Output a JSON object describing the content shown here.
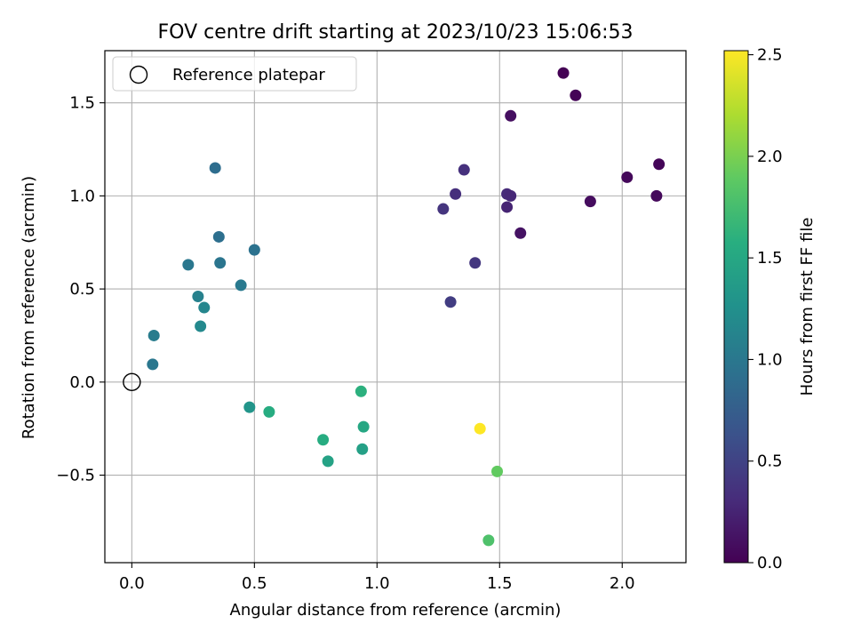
{
  "chart_data": {
    "type": "scatter",
    "title": "FOV centre drift starting at 2023/10/23 15:06:53",
    "xlabel": "Angular distance from reference (arcmin)",
    "ylabel": "Rotation from reference (arcmin)",
    "xlim": [
      -0.11,
      2.26
    ],
    "ylim": [
      -0.97,
      1.78
    ],
    "xticks": [
      0.0,
      0.5,
      1.0,
      1.5,
      2.0
    ],
    "xtick_labels": [
      "0.0",
      "0.5",
      "1.0",
      "1.5",
      "2.0"
    ],
    "yticks": [
      -0.5,
      0.0,
      0.5,
      1.0,
      1.5
    ],
    "ytick_labels": [
      "−0.5",
      "0.0",
      "0.5",
      "1.0",
      "1.5"
    ],
    "grid": true,
    "legend": {
      "placement": "top-left",
      "entries": [
        "Reference platepar"
      ]
    },
    "reference_point": {
      "x": 0.0,
      "y": 0.0,
      "label": "Reference platepar"
    },
    "colorbar": {
      "label": "Hours from first FF file",
      "range": [
        0.0,
        2.52
      ],
      "ticks": [
        0.0,
        0.5,
        1.0,
        1.5,
        2.0,
        2.5
      ],
      "tick_labels": [
        "0.0",
        "0.5",
        "1.0",
        "1.5",
        "2.0",
        "2.5"
      ],
      "colormap": "viridis"
    },
    "points": [
      {
        "x": 1.76,
        "y": 1.66,
        "hours": 0.0
      },
      {
        "x": 1.81,
        "y": 1.54,
        "hours": 0.02
      },
      {
        "x": 1.545,
        "y": 1.43,
        "hours": 0.1
      },
      {
        "x": 2.15,
        "y": 1.17,
        "hours": 0.03
      },
      {
        "x": 2.02,
        "y": 1.1,
        "hours": 0.05
      },
      {
        "x": 2.14,
        "y": 1.0,
        "hours": 0.06
      },
      {
        "x": 1.87,
        "y": 0.97,
        "hours": 0.08
      },
      {
        "x": 1.585,
        "y": 0.8,
        "hours": 0.12
      },
      {
        "x": 1.355,
        "y": 1.14,
        "hours": 0.35
      },
      {
        "x": 1.32,
        "y": 1.01,
        "hours": 0.33
      },
      {
        "x": 1.53,
        "y": 1.01,
        "hours": 0.3
      },
      {
        "x": 1.545,
        "y": 1.0,
        "hours": 0.28
      },
      {
        "x": 1.27,
        "y": 0.93,
        "hours": 0.38
      },
      {
        "x": 1.53,
        "y": 0.94,
        "hours": 0.25
      },
      {
        "x": 1.4,
        "y": 0.64,
        "hours": 0.4
      },
      {
        "x": 1.3,
        "y": 0.43,
        "hours": 0.45
      },
      {
        "x": 0.34,
        "y": 1.15,
        "hours": 0.9
      },
      {
        "x": 0.355,
        "y": 0.78,
        "hours": 0.92
      },
      {
        "x": 0.5,
        "y": 0.71,
        "hours": 0.95
      },
      {
        "x": 0.36,
        "y": 0.64,
        "hours": 0.98
      },
      {
        "x": 0.23,
        "y": 0.63,
        "hours": 1.0
      },
      {
        "x": 0.445,
        "y": 0.52,
        "hours": 1.02
      },
      {
        "x": 0.27,
        "y": 0.46,
        "hours": 1.1
      },
      {
        "x": 0.295,
        "y": 0.4,
        "hours": 1.15
      },
      {
        "x": 0.28,
        "y": 0.3,
        "hours": 1.18
      },
      {
        "x": 0.09,
        "y": 0.25,
        "hours": 1.05
      },
      {
        "x": 0.085,
        "y": 0.095,
        "hours": 1.0
      },
      {
        "x": 0.48,
        "y": -0.135,
        "hours": 1.3
      },
      {
        "x": 0.56,
        "y": -0.16,
        "hours": 1.55
      },
      {
        "x": 0.935,
        "y": -0.05,
        "hours": 1.6
      },
      {
        "x": 0.945,
        "y": -0.24,
        "hours": 1.5
      },
      {
        "x": 0.78,
        "y": -0.31,
        "hours": 1.55
      },
      {
        "x": 0.8,
        "y": -0.425,
        "hours": 1.45
      },
      {
        "x": 0.94,
        "y": -0.36,
        "hours": 1.42
      },
      {
        "x": 1.42,
        "y": -0.25,
        "hours": 2.52
      },
      {
        "x": 1.49,
        "y": -0.48,
        "hours": 1.9
      },
      {
        "x": 1.455,
        "y": -0.85,
        "hours": 1.8
      }
    ]
  }
}
